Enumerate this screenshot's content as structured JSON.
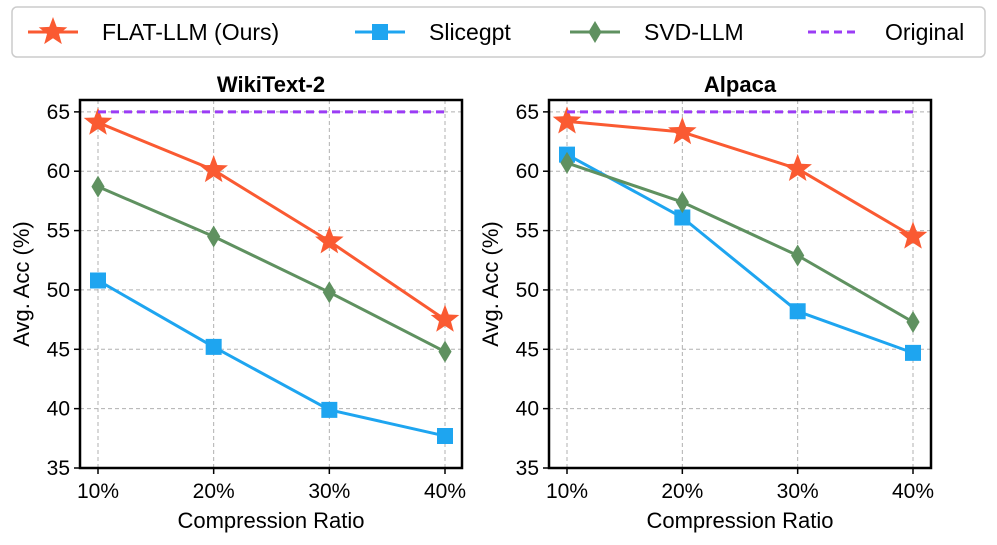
{
  "legend": {
    "items": [
      {
        "label": "FLAT-LLM (Ours)",
        "color": "#fa5a32",
        "marker": "star"
      },
      {
        "label": "Slicegpt",
        "color": "#1ea5f0",
        "marker": "square"
      },
      {
        "label": "SVD-LLM",
        "color": "#5f9160",
        "marker": "diamond"
      },
      {
        "label": "Original",
        "color": "#9b3cf5",
        "marker": "dashed-line"
      }
    ]
  },
  "chart_data": [
    {
      "type": "line",
      "title": "WikiText-2",
      "xlabel": "Compression Ratio",
      "ylabel": "Avg. Acc (%)",
      "categories": [
        "10%",
        "20%",
        "30%",
        "40%"
      ],
      "ylim": [
        35,
        66
      ],
      "yticks": [
        35,
        40,
        45,
        50,
        55,
        60,
        65
      ],
      "grid": true,
      "series": [
        {
          "name": "FLAT-LLM (Ours)",
          "values": [
            64.1,
            60.1,
            54.1,
            47.5
          ]
        },
        {
          "name": "Slicegpt",
          "values": [
            50.8,
            45.2,
            39.9,
            37.7
          ]
        },
        {
          "name": "SVD-LLM",
          "values": [
            58.7,
            54.5,
            49.8,
            44.8
          ]
        },
        {
          "name": "Original",
          "values": [
            65.0,
            65.0,
            65.0,
            65.0
          ]
        }
      ]
    },
    {
      "type": "line",
      "title": "Alpaca",
      "xlabel": "Compression Ratio",
      "ylabel": "Avg. Acc (%)",
      "categories": [
        "10%",
        "20%",
        "30%",
        "40%"
      ],
      "ylim": [
        35,
        66
      ],
      "yticks": [
        35,
        40,
        45,
        50,
        55,
        60,
        65
      ],
      "grid": true,
      "series": [
        {
          "name": "FLAT-LLM (Ours)",
          "values": [
            64.2,
            63.3,
            60.2,
            54.5
          ]
        },
        {
          "name": "Slicegpt",
          "values": [
            61.4,
            56.1,
            48.2,
            44.7
          ]
        },
        {
          "name": "SVD-LLM",
          "values": [
            60.7,
            57.4,
            52.9,
            47.3
          ]
        },
        {
          "name": "Original",
          "values": [
            65.0,
            65.0,
            65.0,
            65.0
          ]
        }
      ]
    }
  ]
}
